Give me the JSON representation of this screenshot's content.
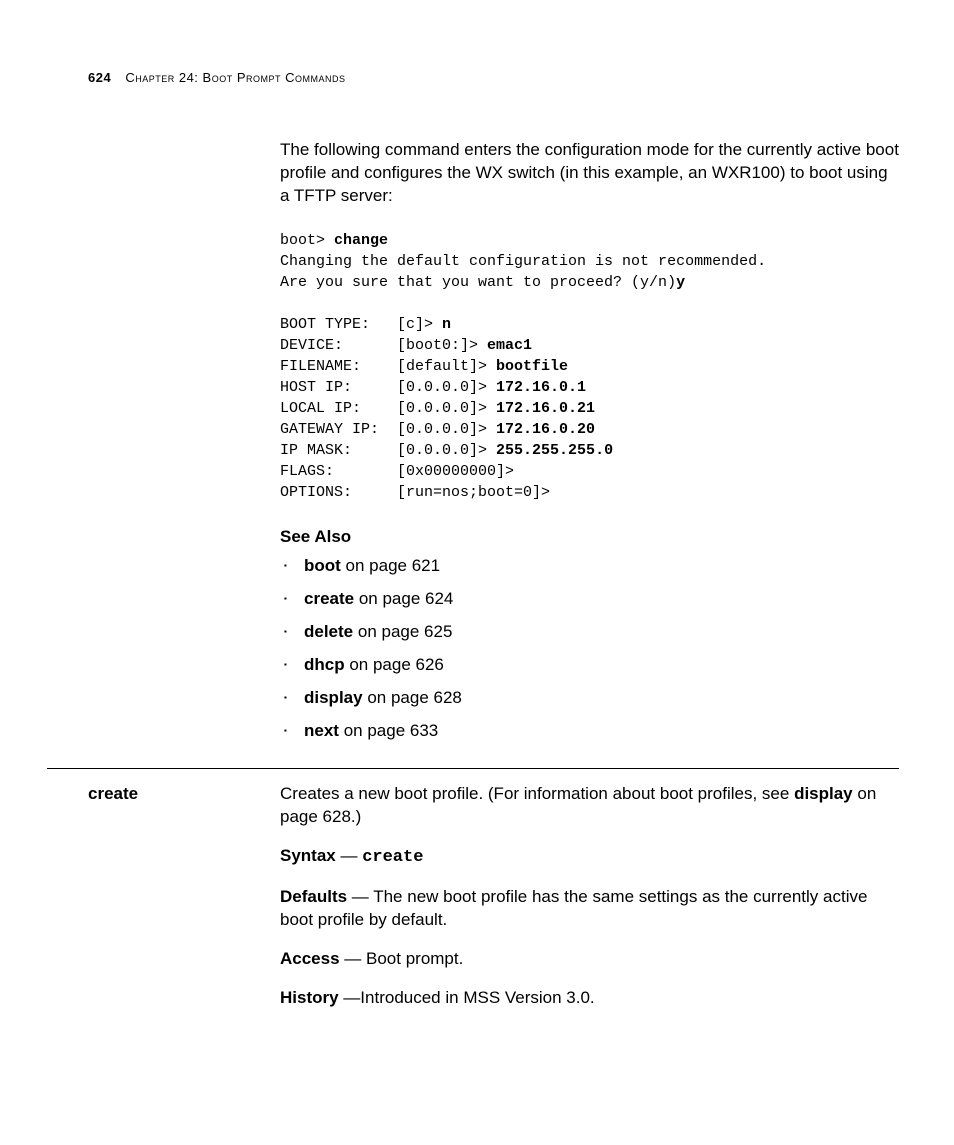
{
  "header": {
    "page_number": "624",
    "chapter_prefix": "Chapter 24: ",
    "chapter_title": "Boot Prompt Commands"
  },
  "intro_paragraph": "The following command enters the configuration mode for the currently active boot profile and configures the WX switch (in this example, an WXR100) to boot using a TFTP server:",
  "code": {
    "l1_prompt": "boot> ",
    "l1_cmd": "change",
    "l2": "Changing the default configuration is not recommended.",
    "l3_a": "Are you sure that you want to proceed? (y/n)",
    "l3_b": "y",
    "boot_type_label": "BOOT TYPE:   [c]> ",
    "boot_type_val": "n",
    "device_label": "DEVICE:      [boot0:]> ",
    "device_val": "emac1",
    "filename_label": "FILENAME:    [default]> ",
    "filename_val": "bootfile",
    "hostip_label": "HOST IP:     [0.0.0.0]> ",
    "hostip_val": "172.16.0.1",
    "localip_label": "LOCAL IP:    [0.0.0.0]> ",
    "localip_val": "172.16.0.21",
    "gatewayip_label": "GATEWAY IP:  [0.0.0.0]> ",
    "gatewayip_val": "172.16.0.20",
    "ipmask_label": "IP MASK:     [0.0.0.0]> ",
    "ipmask_val": "255.255.255.0",
    "flags_label": "FLAGS:       [0x00000000]>",
    "options_label": "OPTIONS:     [run=nos;boot=0]>"
  },
  "see_also_heading": "See Also",
  "see_also": [
    {
      "cmd": "boot",
      "rest": " on page 621"
    },
    {
      "cmd": "create",
      "rest": " on page 624"
    },
    {
      "cmd": "delete",
      "rest": " on page 625"
    },
    {
      "cmd": "dhcp",
      "rest": " on page 626"
    },
    {
      "cmd": "display",
      "rest": " on page 628"
    },
    {
      "cmd": "next",
      "rest": " on page 633"
    }
  ],
  "entry": {
    "margin_head": "create",
    "desc_a": "Creates a new boot profile. (For information about boot profiles, see ",
    "desc_b_bold": "display",
    "desc_c": " on page 628.)",
    "syntax_label": "Syntax",
    "syntax_dash": " — ",
    "syntax_cmd": "create",
    "defaults_label": "Defaults",
    "defaults_text": " — The new boot profile has the same settings as the currently active boot profile by default.",
    "access_label": "Access",
    "access_text": " — Boot prompt.",
    "history_label": "History",
    "history_text": " —Introduced in MSS Version 3.0."
  }
}
